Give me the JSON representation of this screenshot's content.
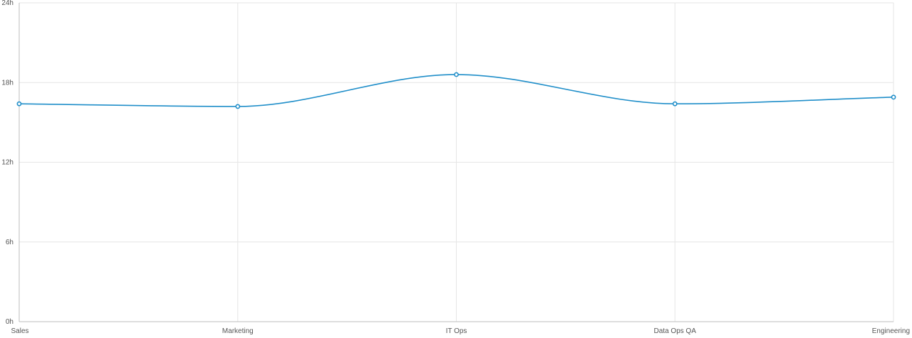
{
  "chart_data": {
    "type": "line",
    "categories": [
      "Sales",
      "Marketing",
      "IT Ops",
      "Data Ops QA",
      "Engineering"
    ],
    "series": [
      {
        "values": [
          16.4,
          16.2,
          18.6,
          16.4,
          16.9
        ],
        "color": "#1f8ec9"
      }
    ],
    "y_ticks": [
      0,
      6,
      12,
      18,
      24
    ],
    "y_tick_suffix": "h",
    "ylim": [
      0,
      24
    ],
    "grid": true,
    "curve": "smooth"
  }
}
